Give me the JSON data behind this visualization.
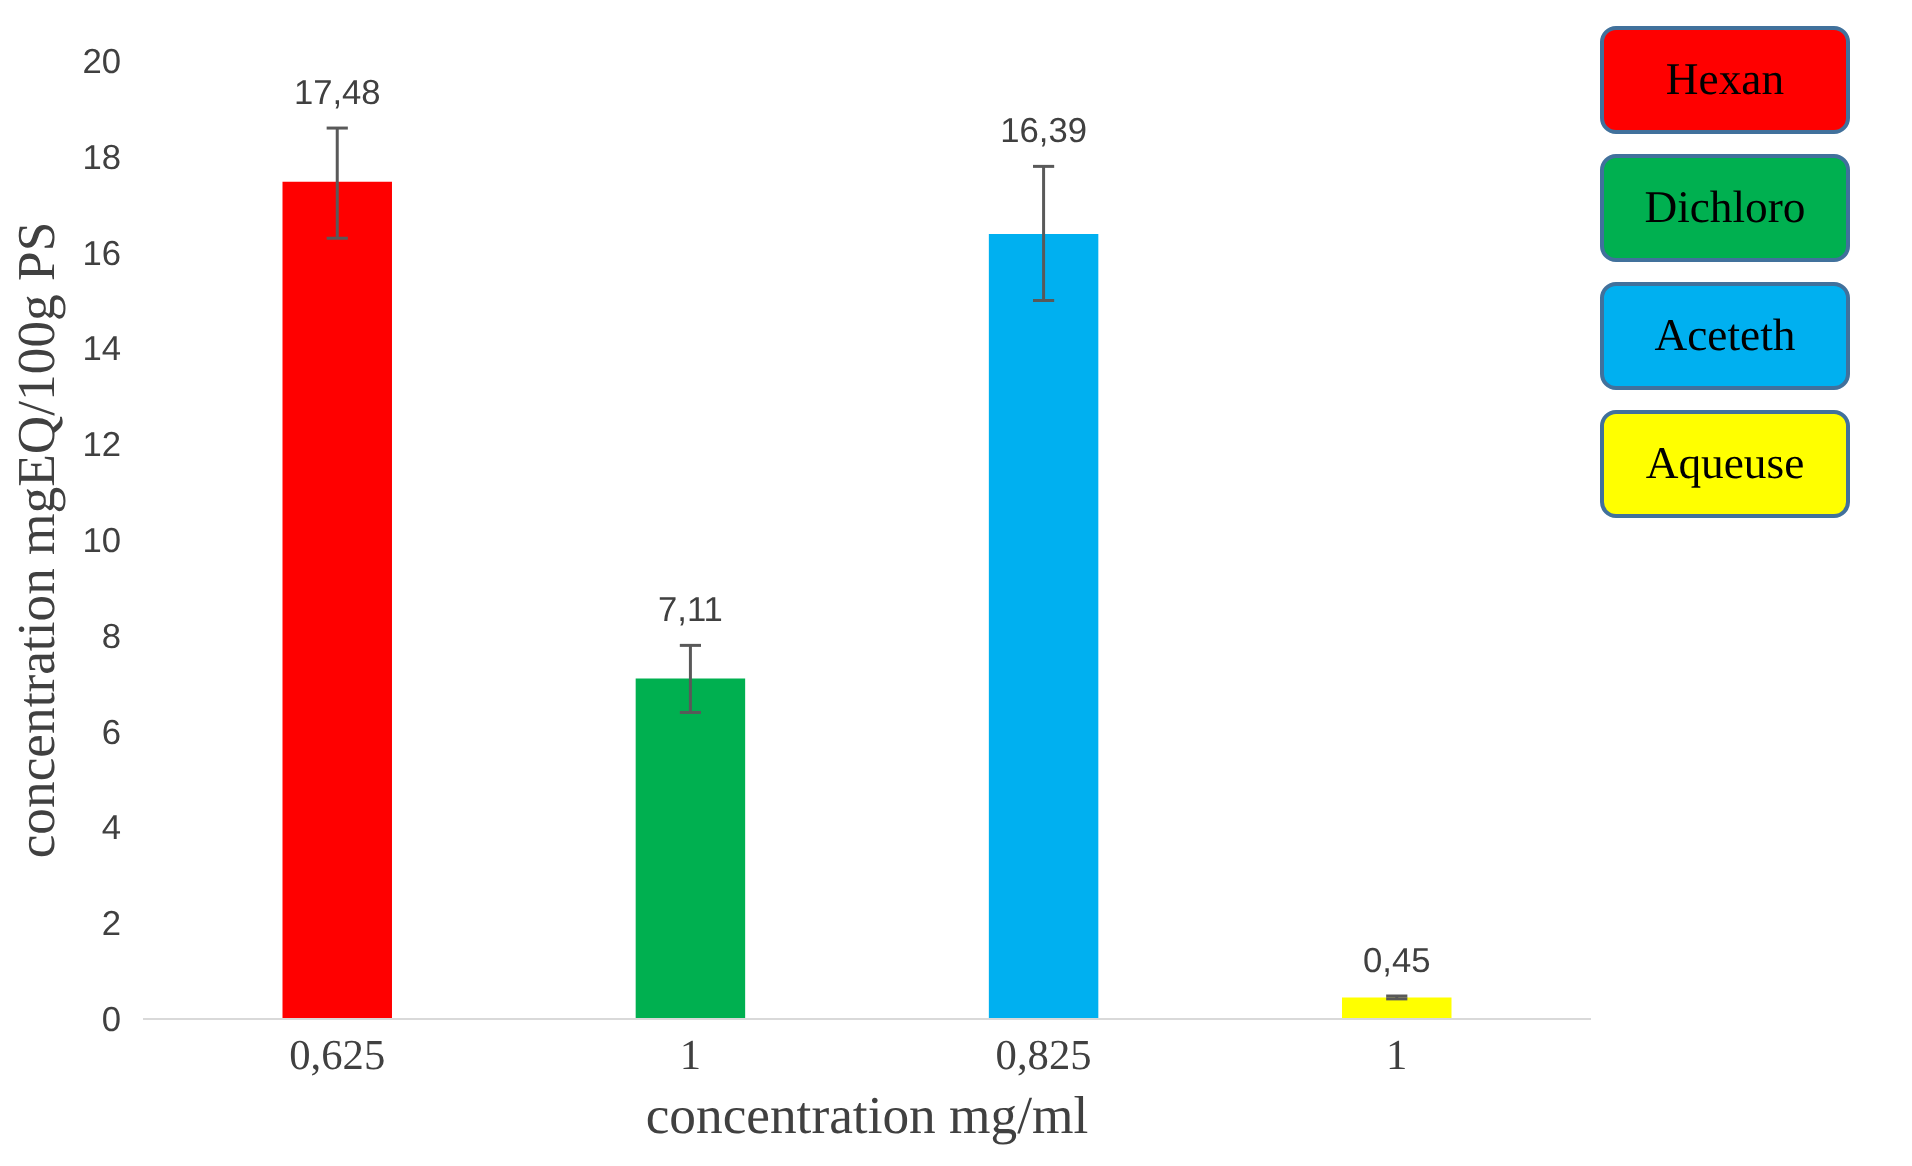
{
  "chart_data": {
    "type": "bar",
    "xlabel": "concentration mg/ml",
    "ylabel": "concentration mgEQ/100g PS",
    "categories": [
      "0,625",
      "1",
      "0,825",
      "1"
    ],
    "series": [
      {
        "name": "Hexan",
        "color": "#ff0000",
        "values": [
          17.48,
          null,
          null,
          null
        ],
        "errors": [
          [
            16.3,
            18.6
          ],
          null,
          null,
          null
        ],
        "value_labels": [
          "17,48",
          null,
          null,
          null
        ]
      },
      {
        "name": "Dichloro",
        "color": "#00b050",
        "values": [
          null,
          7.11,
          null,
          null
        ],
        "errors": [
          null,
          [
            6.4,
            7.8
          ],
          null,
          null
        ],
        "value_labels": [
          null,
          "7,11",
          null,
          null
        ]
      },
      {
        "name": "Aceteth",
        "color": "#00b0f0",
        "values": [
          null,
          null,
          16.39,
          null
        ],
        "errors": [
          null,
          null,
          [
            15.0,
            17.8
          ],
          null
        ],
        "value_labels": [
          null,
          null,
          "16,39",
          null
        ]
      },
      {
        "name": "Aqueuse",
        "color": "#ffff00",
        "values": [
          null,
          null,
          null,
          0.45
        ],
        "errors": [
          null,
          null,
          null,
          0.03
        ],
        "value_labels": [
          null,
          null,
          null,
          "0,45"
        ]
      }
    ],
    "ylim": [
      0,
      20
    ],
    "yticks": [
      0,
      2,
      4,
      6,
      8,
      10,
      12,
      14,
      16,
      18,
      20
    ],
    "grid": false,
    "legend": "top right"
  }
}
